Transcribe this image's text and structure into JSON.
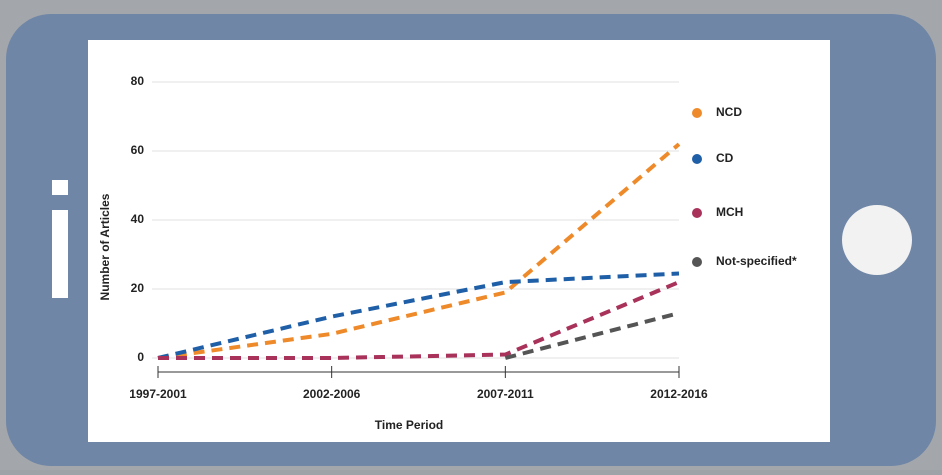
{
  "chart_data": {
    "type": "line",
    "x_label": "Time Period",
    "y_label": "Number of Articles",
    "categories": [
      "1997-2001",
      "2002-2006",
      "2007-2011",
      "2012-2016"
    ],
    "series": [
      {
        "name": "NCD",
        "color": "#ee8a2a",
        "values": [
          0,
          7,
          19,
          62
        ]
      },
      {
        "name": "CD",
        "color": "#1f5fa8",
        "values": [
          0,
          12,
          22,
          24.5
        ]
      },
      {
        "name": "MCH",
        "color": "#a8325a",
        "values": [
          0,
          0,
          1,
          22
        ]
      },
      {
        "name": "Not-specified*",
        "color": "#555555",
        "values": [
          null,
          null,
          0,
          13
        ]
      }
    ],
    "ylim": [
      0,
      80
    ],
    "yticks": [
      0,
      20,
      40,
      60,
      80
    ],
    "grid": true
  }
}
